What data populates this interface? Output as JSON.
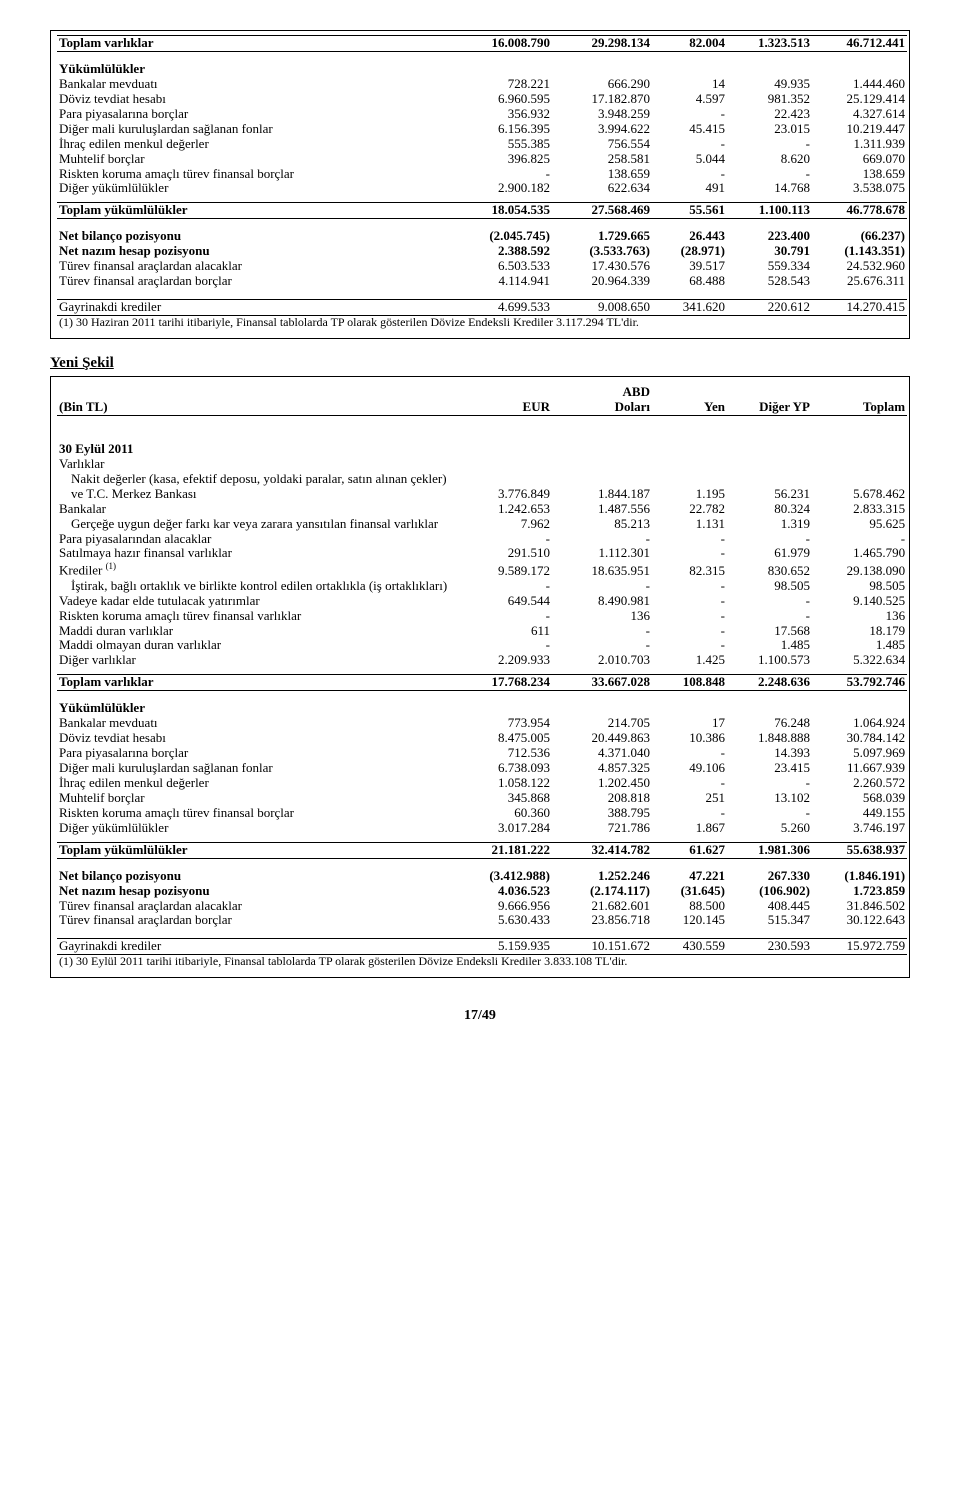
{
  "columns": {
    "bin_tl": "(Bin TL)",
    "eur": "EUR",
    "abd": "ABD",
    "dolari": "Doları",
    "yen": "Yen",
    "diger_yp": "Diğer YP",
    "toplam": "Toplam"
  },
  "yeni_sekil": "Yeni Şekil",
  "pagenum": "17/49",
  "t1": {
    "toplam_varliklar": {
      "label": "Toplam varlıklar",
      "c": [
        "16.008.790",
        "29.298.134",
        "82.004",
        "1.323.513",
        "46.712.441"
      ]
    },
    "yukumlulukler": "Yükümlülükler",
    "rows_y": [
      {
        "label": "Bankalar mevduatı",
        "c": [
          "728.221",
          "666.290",
          "14",
          "49.935",
          "1.444.460"
        ]
      },
      {
        "label": "Döviz tevdiat hesabı",
        "c": [
          "6.960.595",
          "17.182.870",
          "4.597",
          "981.352",
          "25.129.414"
        ]
      },
      {
        "label": "Para piyasalarına borçlar",
        "c": [
          "356.932",
          "3.948.259",
          "-",
          "22.423",
          "4.327.614"
        ]
      },
      {
        "label": "Diğer mali kuruluşlardan sağlanan fonlar",
        "c": [
          "6.156.395",
          "3.994.622",
          "45.415",
          "23.015",
          "10.219.447"
        ]
      },
      {
        "label": "İhraç edilen menkul değerler",
        "c": [
          "555.385",
          "756.554",
          "-",
          "-",
          "1.311.939"
        ]
      },
      {
        "label": "Muhtelif borçlar",
        "c": [
          "396.825",
          "258.581",
          "5.044",
          "8.620",
          "669.070"
        ]
      },
      {
        "label": "Riskten koruma amaçlı türev finansal borçlar",
        "c": [
          "-",
          "138.659",
          "-",
          "-",
          "138.659"
        ]
      },
      {
        "label": "Diğer yükümlülükler",
        "c": [
          "2.900.182",
          "622.634",
          "491",
          "14.768",
          "3.538.075"
        ]
      }
    ],
    "toplam_yukumlulukler": {
      "label": "Toplam yükümlülükler",
      "c": [
        "18.054.535",
        "27.568.469",
        "55.561",
        "1.100.113",
        "46.778.678"
      ]
    },
    "net_bilanco": {
      "label": "Net bilanço pozisyonu",
      "c": [
        "(2.045.745)",
        "1.729.665",
        "26.443",
        "223.400",
        "(66.237)"
      ]
    },
    "net_nazim": {
      "label": "Net nazım hesap pozisyonu",
      "c": [
        "2.388.592",
        "(3.533.763)",
        "(28.971)",
        "30.791",
        "(1.143.351)"
      ]
    },
    "turev_alacak": {
      "label": "Türev finansal araçlardan alacaklar",
      "c": [
        "6.503.533",
        "17.430.576",
        "39.517",
        "559.334",
        "24.532.960"
      ]
    },
    "turev_borc": {
      "label": "Türev finansal araçlardan borçlar",
      "c": [
        "4.114.941",
        "20.964.339",
        "68.488",
        "528.543",
        "25.676.311"
      ]
    },
    "gayrinakdi": {
      "label": "Gayrinakdi krediler",
      "c": [
        "4.699.533",
        "9.008.650",
        "341.620",
        "220.612",
        "14.270.415"
      ]
    },
    "footnote": "(1) 30 Haziran 2011 tarihi itibariyle, Finansal tablolarda TP olarak gösterilen Dövize Endeksli Krediler 3.117.294 TL'dir."
  },
  "t2": {
    "date_section": "30 Eylül 2011",
    "varliklar": "Varlıklar",
    "rows_v": [
      {
        "label": "Nakit değerler (kasa, efektif deposu, yoldaki paralar, satın alınan çekler) ve T.C. Merkez Bankası",
        "indent": true,
        "c": [
          "3.776.849",
          "1.844.187",
          "1.195",
          "56.231",
          "5.678.462"
        ]
      },
      {
        "label": "Bankalar",
        "c": [
          "1.242.653",
          "1.487.556",
          "22.782",
          "80.324",
          "2.833.315"
        ]
      },
      {
        "label": "Gerçeğe uygun değer farkı kar veya zarara yansıtılan finansal varlıklar",
        "indent": true,
        "c": [
          "7.962",
          "85.213",
          "1.131",
          "1.319",
          "95.625"
        ]
      },
      {
        "label": "Para piyasalarından alacaklar",
        "c": [
          "-",
          "-",
          "-",
          "-",
          "-"
        ]
      },
      {
        "label": "Satılmaya hazır finansal varlıklar",
        "c": [
          "291.510",
          "1.112.301",
          "-",
          "61.979",
          "1.465.790"
        ]
      },
      {
        "label": "Krediler (1)",
        "sup": "(1)",
        "base": "Krediler ",
        "c": [
          "9.589.172",
          "18.635.951",
          "82.315",
          "830.652",
          "29.138.090"
        ]
      },
      {
        "label": "İştirak, bağlı ortaklık ve birlikte kontrol edilen ortaklıkla    (iş ortaklıkları)",
        "indent": true,
        "c": [
          "-",
          "-",
          "-",
          "98.505",
          "98.505"
        ]
      },
      {
        "label": "Vadeye kadar elde tutulacak yatırımlar",
        "c": [
          "649.544",
          "8.490.981",
          "-",
          "-",
          "9.140.525"
        ]
      },
      {
        "label": "Riskten koruma amaçlı türev finansal varlıklar",
        "c": [
          "-",
          "136",
          "-",
          "-",
          "136"
        ]
      },
      {
        "label": "Maddi duran varlıklar",
        "c": [
          "611",
          "-",
          "-",
          "17.568",
          "18.179"
        ]
      },
      {
        "label": "Maddi olmayan duran varlıklar",
        "c": [
          "-",
          "-",
          "-",
          "1.485",
          "1.485"
        ]
      },
      {
        "label": "Diğer varlıklar",
        "c": [
          "2.209.933",
          "2.010.703",
          "1.425",
          "1.100.573",
          "5.322.634"
        ]
      }
    ],
    "toplam_varliklar": {
      "label": "Toplam varlıklar",
      "c": [
        "17.768.234",
        "33.667.028",
        "108.848",
        "2.248.636",
        "53.792.746"
      ]
    },
    "yukumlulukler": "Yükümlülükler",
    "rows_y": [
      {
        "label": "Bankalar mevduatı",
        "c": [
          "773.954",
          "214.705",
          "17",
          "76.248",
          "1.064.924"
        ]
      },
      {
        "label": "Döviz tevdiat hesabı",
        "c": [
          "8.475.005",
          "20.449.863",
          "10.386",
          "1.848.888",
          "30.784.142"
        ]
      },
      {
        "label": "Para piyasalarına borçlar",
        "c": [
          "712.536",
          "4.371.040",
          "-",
          "14.393",
          "5.097.969"
        ]
      },
      {
        "label": "Diğer mali kuruluşlardan sağlanan fonlar",
        "c": [
          "6.738.093",
          "4.857.325",
          "49.106",
          "23.415",
          "11.667.939"
        ]
      },
      {
        "label": "İhraç edilen menkul değerler",
        "c": [
          "1.058.122",
          "1.202.450",
          "-",
          "-",
          "2.260.572"
        ]
      },
      {
        "label": "Muhtelif borçlar",
        "c": [
          "345.868",
          "208.818",
          "251",
          "13.102",
          "568.039"
        ]
      },
      {
        "label": "Riskten koruma amaçlı türev finansal borçlar",
        "c": [
          "60.360",
          "388.795",
          "-",
          "-",
          "449.155"
        ]
      },
      {
        "label": "Diğer yükümlülükler",
        "c": [
          "3.017.284",
          "721.786",
          "1.867",
          "5.260",
          "3.746.197"
        ]
      }
    ],
    "toplam_yukumlulukler": {
      "label": "Toplam yükümlülükler",
      "c": [
        "21.181.222",
        "32.414.782",
        "61.627",
        "1.981.306",
        "55.638.937"
      ]
    },
    "net_bilanco": {
      "label": "Net bilanço pozisyonu",
      "c": [
        "(3.412.988)",
        "1.252.246",
        "47.221",
        "267.330",
        "(1.846.191)"
      ]
    },
    "net_nazim": {
      "label": "Net nazım hesap pozisyonu",
      "c": [
        "4.036.523",
        "(2.174.117)",
        "(31.645)",
        "(106.902)",
        "1.723.859"
      ]
    },
    "turev_alacak": {
      "label": "Türev finansal araçlardan alacaklar",
      "c": [
        "9.666.956",
        "21.682.601",
        "88.500",
        "408.445",
        "31.846.502"
      ]
    },
    "turev_borc": {
      "label": "Türev finansal araçlardan borçlar",
      "c": [
        "5.630.433",
        "23.856.718",
        "120.145",
        "515.347",
        "30.122.643"
      ]
    },
    "gayrinakdi": {
      "label": "Gayrinakdi krediler",
      "c": [
        "5.159.935",
        "10.151.672",
        "430.559",
        "230.593",
        "15.972.759"
      ]
    },
    "footnote": "(1) 30 Eylül 2011 tarihi itibariyle, Finansal tablolarda TP olarak gösterilen Dövize Endeksli Krediler 3.833.108 TL'dir."
  },
  "col_widths": {
    "label": 400,
    "c1": 95,
    "c2": 100,
    "c3": 75,
    "c4": 85,
    "c5": 95
  },
  "font": {
    "base_size": 13,
    "title_size": 15,
    "footnote_size": 12
  },
  "colors": {
    "text": "#000000",
    "bg": "#ffffff",
    "border": "#000000"
  }
}
